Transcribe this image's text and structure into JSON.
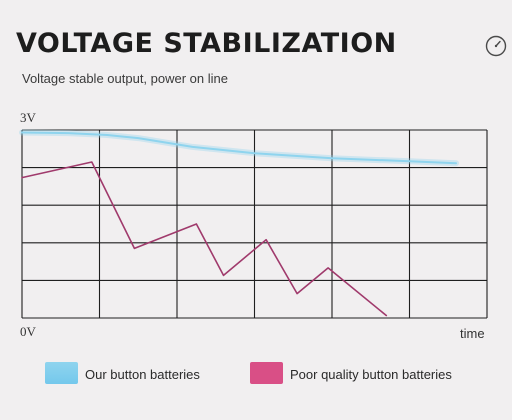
{
  "title": "VOLTAGE STABILIZATION",
  "icons": {
    "gauge": "gauge-icon"
  },
  "colors": {
    "good": "#8fd4ee",
    "bad": "#a03a6c",
    "bad_swatch": "#d94f86",
    "grid": "#1f1f1f"
  },
  "chart_data": {
    "type": "line",
    "subtitle": "Voltage stable output, power on line",
    "y_top_label": "3V",
    "y_bottom_label": "0V",
    "xlabel": "time",
    "ylim": [
      0,
      3
    ],
    "xlim": [
      0,
      6
    ],
    "grid": true,
    "legend_position": "bottom",
    "series": [
      {
        "name": "Our button batteries",
        "color": "#8fd4ee",
        "points": [
          [
            0,
            2.96
          ],
          [
            0.6,
            2.95
          ],
          [
            1.1,
            2.92
          ],
          [
            1.5,
            2.87
          ],
          [
            2.2,
            2.73
          ],
          [
            3.0,
            2.63
          ],
          [
            4.0,
            2.55
          ],
          [
            5.0,
            2.5
          ],
          [
            5.6,
            2.47
          ]
        ]
      },
      {
        "name": "Poor quality button batteries",
        "color": "#a03a6c",
        "points": [
          [
            0,
            2.24
          ],
          [
            0.9,
            2.49
          ],
          [
            1.45,
            1.11
          ],
          [
            2.25,
            1.5
          ],
          [
            2.6,
            0.68
          ],
          [
            3.15,
            1.25
          ],
          [
            3.55,
            0.39
          ],
          [
            3.95,
            0.8
          ],
          [
            4.7,
            0.04
          ]
        ]
      }
    ]
  }
}
